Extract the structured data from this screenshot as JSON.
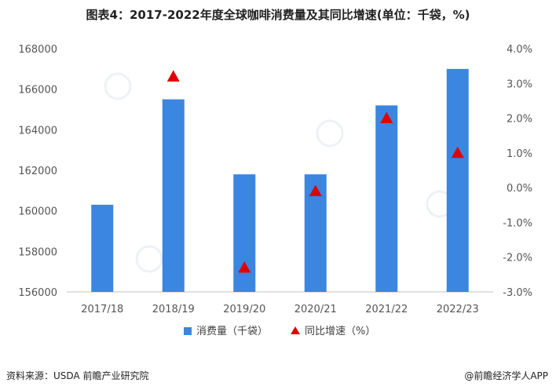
{
  "title": "图表4：2017-2022年度全球咖啡消费量及其同比增速(单位：千袋，%)",
  "source": "资料来源：USDA 前瞻产业研究院",
  "brand": "@前瞻经济学人APP",
  "colors": {
    "bar": "#3a86e0",
    "marker": "#e00000"
  },
  "chart_data": {
    "type": "bar",
    "title": "图表4：2017-2022年度全球咖啡消费量及其同比增速(单位：千袋，%)",
    "categories": [
      "2017/18",
      "2018/19",
      "2019/20",
      "2020/21",
      "2021/22",
      "2022/23"
    ],
    "series": [
      {
        "name": "消费量（千袋）",
        "type": "bar",
        "axis": "left",
        "values": [
          160300,
          165500,
          161800,
          161800,
          165200,
          167000
        ]
      },
      {
        "name": "同比增速（%）",
        "type": "scatter",
        "marker": "triangle",
        "axis": "right",
        "values": [
          null,
          3.2,
          -2.3,
          -0.1,
          2.0,
          1.0
        ]
      }
    ],
    "y_left": {
      "min": 156000,
      "max": 168000,
      "step": 2000,
      "ticks": [
        "156000",
        "158000",
        "160000",
        "162000",
        "164000",
        "166000",
        "168000"
      ]
    },
    "y_right": {
      "min": -3.0,
      "max": 4.0,
      "step": 1.0,
      "ticks": [
        "-3.0%",
        "-2.0%",
        "-1.0%",
        "0.0%",
        "1.0%",
        "2.0%",
        "3.0%",
        "4.0%"
      ]
    },
    "grid": false,
    "legend": "bottom"
  }
}
